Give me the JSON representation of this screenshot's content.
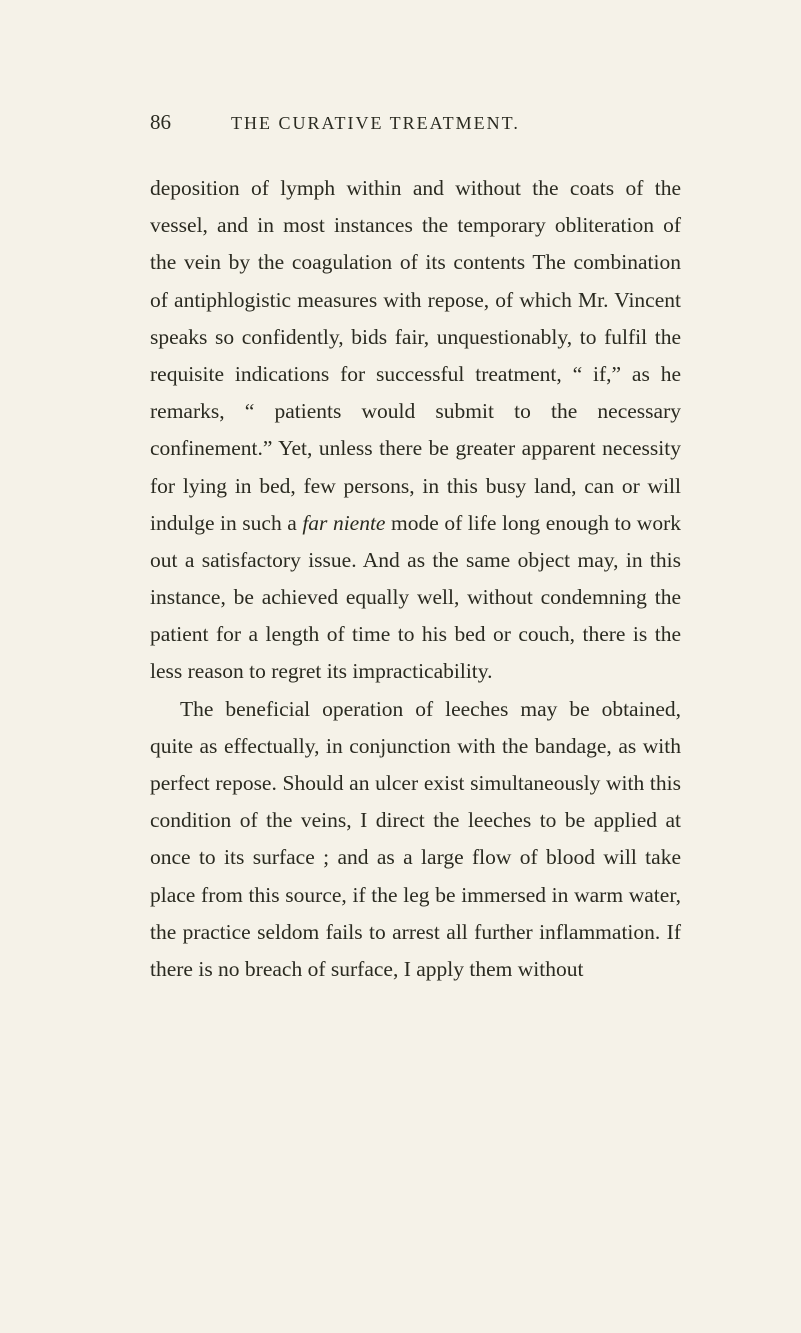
{
  "page_number": "86",
  "header_title": "THE CURATIVE TREATMENT.",
  "paragraph1": "deposition of lymph within and without the coats of the vessel, and in most instances the temporary obliteration of the vein by the coagulation of its contents The combination of antiphlogistic measures with repose, of which Mr. Vincent speaks so confidently, bids fair, unquestionably, to fulfil the requisite indications for successful treatment, “ if,” as he remarks, “ patients would submit to the necessary confinement.” Yet, unless there be greater apparent necessity for lying in bed, few persons, in this busy land, can or will indulge in such a ",
  "italic_phrase": "far niente",
  "paragraph1_cont": " mode of life long enough to work out a satisfactory issue. And as the same object may, in this instance, be achieved equally well, without condemning the patient for a length of time to his bed or couch, there is the less reason to regret its impracticability.",
  "paragraph2": "The beneficial operation of leeches may be obtained, quite as effectually, in conjunction with the bandage, as with perfect repose. Should an ulcer exist simultaneously with this condition of the veins, I direct the leeches to be applied at once to its surface ; and as a large flow of blood will take place from this source, if the leg be immersed in warm water, the practice seldom fails to arrest all further inflammation. If there is no breach of surface, I apply them without",
  "colors": {
    "background": "#f5f2e8",
    "text": "#2a2a20"
  },
  "typography": {
    "body_fontsize": 21.5,
    "header_fontsize": 18,
    "pagenum_fontsize": 21,
    "line_height": 1.73,
    "font_family": "Georgia, Times New Roman, serif"
  }
}
